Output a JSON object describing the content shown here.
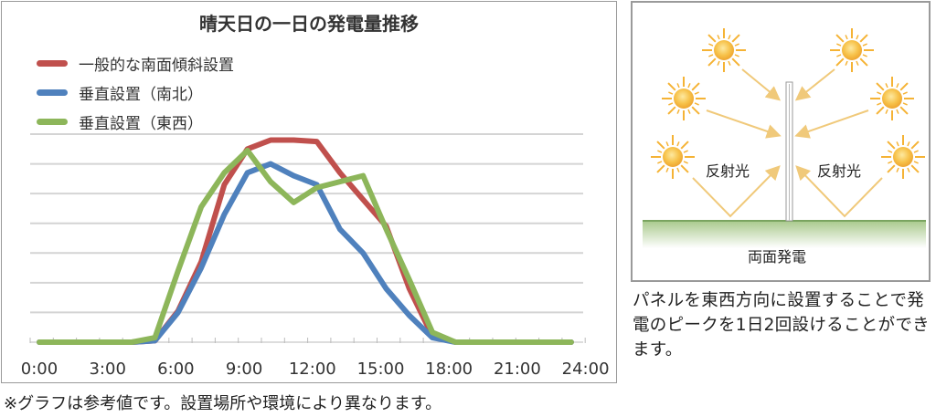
{
  "chart_data": {
    "type": "line",
    "title": "晴天日の一日の発電量推移",
    "xlabel": "",
    "ylabel": "",
    "x": [
      0,
      1,
      2,
      3,
      4,
      5,
      6,
      7,
      8,
      9,
      10,
      11,
      12,
      13,
      14,
      15,
      16,
      17,
      18,
      19,
      20,
      21,
      22,
      23
    ],
    "x_tick_labels": [
      "0:00",
      "3:00",
      "6:00",
      "9:00",
      "12:00",
      "15:00",
      "18:00",
      "21:00",
      "24:00"
    ],
    "xlim": [
      0,
      24
    ],
    "ylim": [
      0,
      7
    ],
    "grid": true,
    "legend_position": "top-left",
    "series": [
      {
        "name": "一般的な南面傾斜設置",
        "color": "#c0504d",
        "values": [
          0,
          0,
          0,
          0,
          0,
          0.05,
          1.05,
          2.7,
          5.3,
          6.5,
          6.8,
          6.8,
          6.75,
          5.7,
          4.8,
          3.9,
          1.8,
          0.2,
          0,
          0,
          0,
          0,
          0,
          0
        ]
      },
      {
        "name": "垂直設置（南北）",
        "color": "#4f81bd",
        "values": [
          0,
          0,
          0,
          0,
          0,
          0.05,
          1.0,
          2.5,
          4.3,
          5.7,
          6.0,
          5.6,
          5.3,
          3.8,
          3.0,
          1.8,
          0.9,
          0.15,
          0,
          0,
          0,
          0,
          0,
          0
        ]
      },
      {
        "name": "垂直設置（東西）",
        "color": "#8db65a",
        "values": [
          0,
          0,
          0,
          0,
          0,
          0.15,
          2.4,
          4.55,
          5.7,
          6.45,
          5.4,
          4.7,
          5.2,
          5.4,
          5.6,
          3.8,
          2.1,
          0.33,
          0,
          0,
          0,
          0,
          0,
          0
        ]
      }
    ]
  },
  "diagram": {
    "reflect_left": "反射光",
    "reflect_right": "反射光",
    "ground_label": "両面発電",
    "sun_color": "#f5b335",
    "arrow_color": "#f0c97a"
  },
  "caption": "パネルを東西方向に設置することで発電のピークを1日2回設けることができます。",
  "footer": "※グラフは参考値です。設置場所や環境により異なります。"
}
